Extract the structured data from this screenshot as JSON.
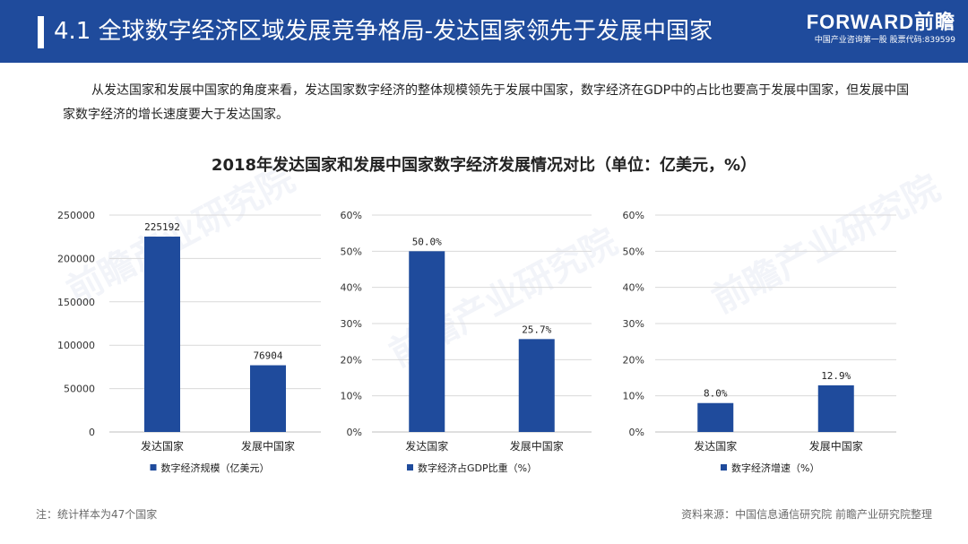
{
  "header": {
    "title": "4.1 全球数字经济区域发展竞争格局-发达国家领先于发展中国家",
    "brand_name": "FORWARD前瞻",
    "brand_sub": "中国产业咨询第一股  股票代码:839599"
  },
  "intro_text": "从发达国家和发展中国家的角度来看，发达国家数字经济的整体规模领先于发展中国家，数字经济在GDP中的占比也要高于发展中国家，但发展中国家数字经济的增长速度要大于发达国家。",
  "main_title": "2018年发达国家和发展中国家数字经济发展情况对比（单位：亿美元，%）",
  "watermark": "前瞻产业研究院",
  "footer": {
    "note": "注：统计样本为47个国家",
    "source": "资料来源：中国信息通信研究院 前瞻产业研究院整理"
  },
  "colors": {
    "header": "#1f4b9c",
    "bar": "#1f4b9c",
    "grid": "#d9d9d9",
    "axis_text": "#333333"
  },
  "chart_data": [
    {
      "type": "bar",
      "categories": [
        "发达国家",
        "发展中国家"
      ],
      "values": [
        225192,
        76904
      ],
      "value_labels": [
        "225192",
        "76904"
      ],
      "yticks": [
        "0",
        "50000",
        "100000",
        "150000",
        "200000",
        "250000"
      ],
      "ylim": [
        0,
        250000
      ],
      "legend": "数字经济规模（亿美元）",
      "grid": true,
      "legend_position": "bottom"
    },
    {
      "type": "bar",
      "categories": [
        "发达国家",
        "发展中国家"
      ],
      "values": [
        50.0,
        25.7
      ],
      "value_labels": [
        "50.0%",
        "25.7%"
      ],
      "yticks": [
        "0%",
        "10%",
        "20%",
        "30%",
        "40%",
        "50%",
        "60%"
      ],
      "ylim": [
        0,
        60
      ],
      "legend": "数字经济占GDP比重（%）",
      "grid": true,
      "legend_position": "bottom"
    },
    {
      "type": "bar",
      "categories": [
        "发达国家",
        "发展中国家"
      ],
      "values": [
        8.0,
        12.9
      ],
      "value_labels": [
        "8.0%",
        "12.9%"
      ],
      "yticks": [
        "0%",
        "10%",
        "20%",
        "30%",
        "40%",
        "50%",
        "60%"
      ],
      "ylim": [
        0,
        60
      ],
      "legend": "数字经济增速（%）",
      "grid": true,
      "legend_position": "bottom"
    }
  ]
}
